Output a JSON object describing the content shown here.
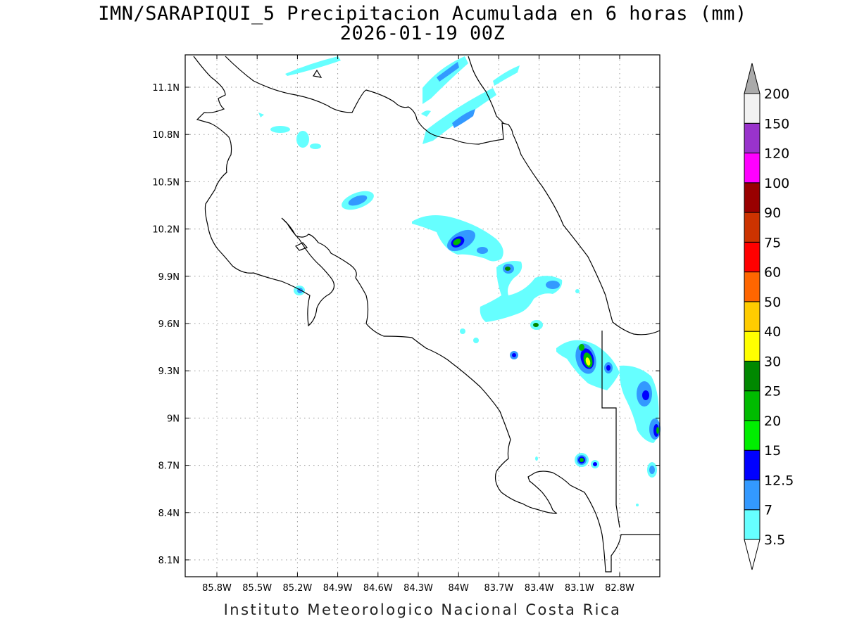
{
  "title": {
    "line1": "IMN/SARAPIQUI_5 Precipitacion Acumulada en 6 horas (mm)",
    "line2": "2026-01-19 00Z"
  },
  "footer": "Instituto Meteorologico Nacional Costa Rica",
  "map": {
    "lon_range": [
      -86.05,
      -82.6
    ],
    "lat_range": [
      8.0,
      11.3
    ],
    "lon_ticks": [
      "85.8W",
      "85.5W",
      "85.2W",
      "84.9W",
      "84.6W",
      "84.3W",
      "84W",
      "83.7W",
      "83.4W",
      "83.1W",
      "82.8W"
    ],
    "lat_ticks": [
      "11.1N",
      "10.8N",
      "10.5N",
      "10.2N",
      "9.9N",
      "9.6N",
      "9.3N",
      "9N",
      "8.7N",
      "8.4N",
      "8.1N"
    ],
    "grid": "dotted"
  },
  "colorbar": {
    "levels": [
      "3.5",
      "7",
      "12.5",
      "15",
      "20",
      "25",
      "30",
      "40",
      "50",
      "60",
      "75",
      "90",
      "100",
      "120",
      "150",
      "200"
    ],
    "colors": [
      "#66ffff",
      "#3399ff",
      "#0000ff",
      "#00ee00",
      "#00bb00",
      "#008800",
      "#ffff00",
      "#ffcc00",
      "#ff6600",
      "#ff0000",
      "#cc3300",
      "#990000",
      "#ff00ff",
      "#9933cc",
      "#f2f2f2",
      "#aaaaaa"
    ]
  }
}
